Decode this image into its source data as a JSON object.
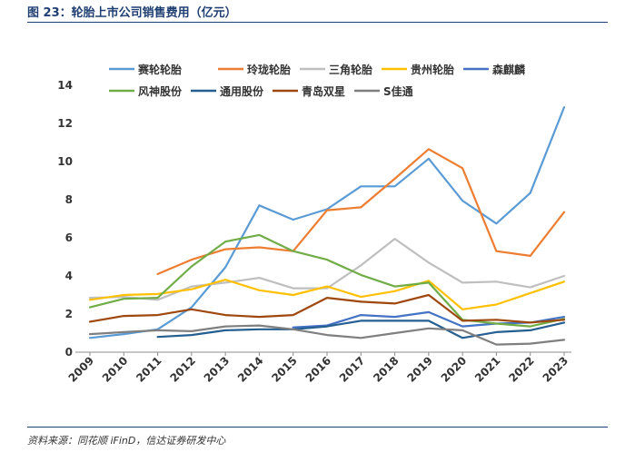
{
  "figure": {
    "title": "图 23：轮胎上市公司销售费用（亿元）",
    "source": "资料来源：同花顺 iFinD，信达证券研发中心"
  },
  "chart_data": {
    "type": "line",
    "title": "",
    "xlabel": "",
    "ylabel": "",
    "ylim": [
      0,
      14
    ],
    "yticks": [
      0,
      2,
      4,
      6,
      8,
      10,
      12,
      14
    ],
    "grid": false,
    "legend_position": "top",
    "categories": [
      "2009",
      "2010",
      "2011",
      "2012",
      "2013",
      "2014",
      "2015",
      "2016",
      "2017",
      "2018",
      "2019",
      "2020",
      "2021",
      "2022",
      "2023"
    ],
    "series": [
      {
        "name": "赛轮轮胎",
        "color": "#5b9bd5",
        "values": [
          0.75,
          0.95,
          1.2,
          2.35,
          4.45,
          7.7,
          6.95,
          7.5,
          8.7,
          8.7,
          10.15,
          7.95,
          6.75,
          8.35,
          12.85
        ]
      },
      {
        "name": "玲珑轮胎",
        "color": "#ed7d31",
        "values": [
          null,
          null,
          4.1,
          4.85,
          5.4,
          5.5,
          5.3,
          7.45,
          7.6,
          9.1,
          10.65,
          9.65,
          5.3,
          5.05,
          7.35
        ]
      },
      {
        "name": "三角轮胎",
        "color": "#bfbfbf",
        "values": [
          2.85,
          2.9,
          2.75,
          3.45,
          3.65,
          3.9,
          3.35,
          3.35,
          4.55,
          5.95,
          4.7,
          3.65,
          3.7,
          3.4,
          4.0
        ]
      },
      {
        "name": "贵州轮胎",
        "color": "#ffc000",
        "values": [
          2.75,
          3.0,
          3.05,
          3.3,
          3.8,
          3.25,
          3.0,
          3.45,
          2.9,
          3.2,
          3.75,
          2.25,
          2.5,
          3.1,
          3.7
        ]
      },
      {
        "name": "森麒麟",
        "color": "#4472c4",
        "values": [
          null,
          null,
          null,
          null,
          null,
          null,
          1.3,
          1.4,
          1.95,
          1.85,
          2.1,
          1.35,
          1.5,
          1.55,
          1.85
        ]
      },
      {
        "name": "风神股份",
        "color": "#70ad47",
        "values": [
          2.35,
          2.8,
          2.85,
          4.5,
          5.8,
          6.15,
          5.3,
          4.85,
          4.05,
          3.45,
          3.65,
          1.7,
          1.5,
          1.35,
          1.75
        ]
      },
      {
        "name": "通用股份",
        "color": "#255e91",
        "values": [
          null,
          null,
          0.8,
          0.9,
          1.15,
          1.2,
          1.2,
          1.35,
          1.65,
          1.65,
          1.65,
          0.75,
          1.05,
          1.15,
          1.55
        ]
      },
      {
        "name": "青岛双星",
        "color": "#9e480e",
        "values": [
          1.6,
          1.9,
          1.95,
          2.25,
          1.95,
          1.85,
          1.95,
          2.85,
          2.65,
          2.55,
          3.0,
          1.65,
          1.7,
          1.55,
          1.7
        ]
      },
      {
        "name": "S佳通",
        "color": "#7f7f7f",
        "values": [
          0.95,
          1.05,
          1.15,
          1.1,
          1.35,
          1.4,
          1.2,
          0.9,
          0.75,
          1.0,
          1.25,
          1.15,
          0.4,
          0.45,
          0.65
        ]
      }
    ]
  }
}
